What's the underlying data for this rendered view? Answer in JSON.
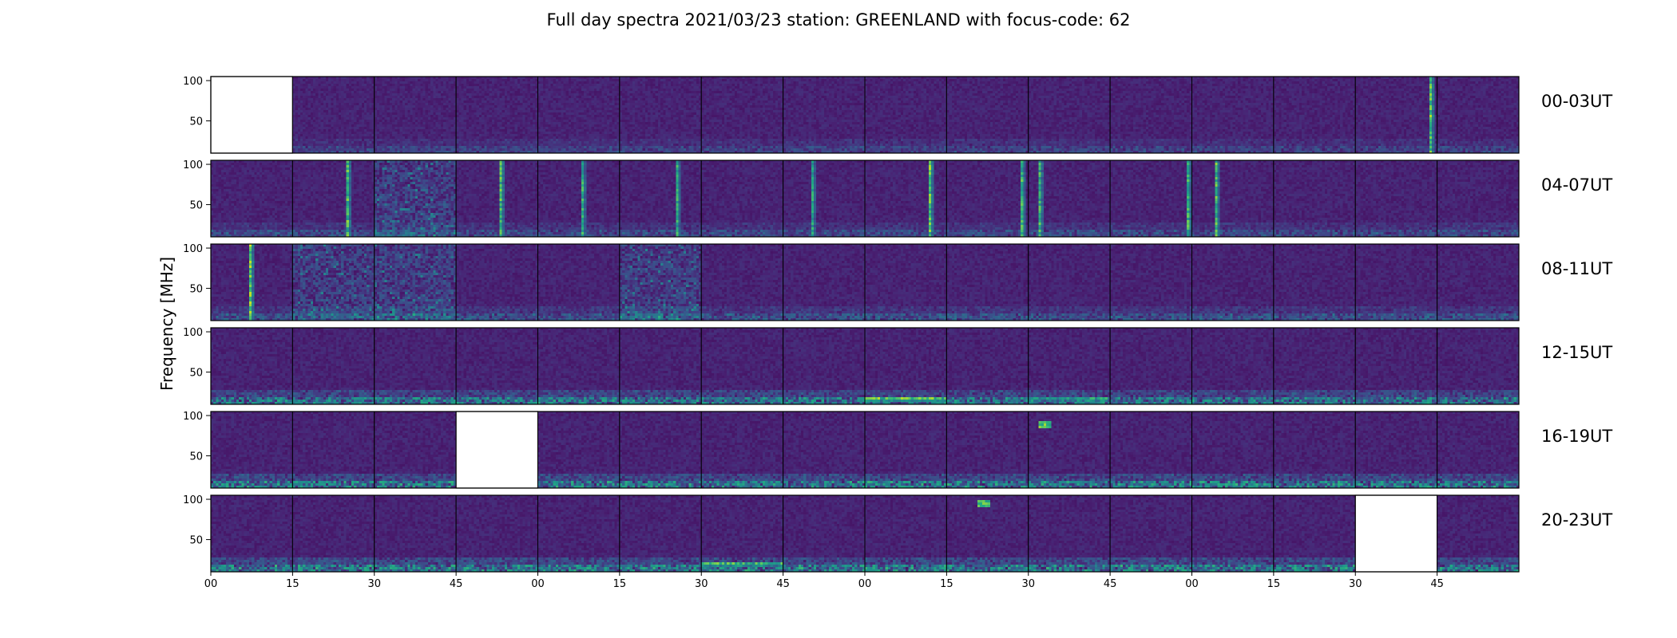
{
  "chart_data": {
    "type": "heatmap",
    "title": "Full day spectra 2021/03/23 station: GREENLAND with focus-code: 62",
    "ylabel": "Frequency [MHz]",
    "ylim": [
      10,
      105
    ],
    "yticks": [
      "100",
      "50"
    ],
    "xticks": [
      "00",
      "15",
      "30",
      "45",
      "00",
      "15",
      "30",
      "45",
      "00",
      "15",
      "30",
      "45",
      "00",
      "15",
      "30",
      "45"
    ],
    "colormap": {
      "low": "#440154",
      "mid": "#21918c",
      "high": "#fde725"
    },
    "panels_per_row": 16,
    "rows": [
      {
        "label": "00-03UT",
        "missing_panels": [
          0
        ],
        "events": [
          {
            "panel": 14,
            "type": "vertical_burst",
            "time_frac": 0.95,
            "strength": 0.9
          }
        ],
        "low_band_activity": 0.2
      },
      {
        "label": "04-07UT",
        "missing_panels": [],
        "events": [
          {
            "panel": 1,
            "type": "vertical_burst",
            "time_frac": 0.68,
            "strength": 0.85
          },
          {
            "panel": 3,
            "type": "vertical_burst",
            "time_frac": 0.55,
            "strength": 0.85
          },
          {
            "panel": 4,
            "type": "vertical_burst",
            "time_frac": 0.55,
            "strength": 0.75
          },
          {
            "panel": 5,
            "type": "vertical_burst",
            "time_frac": 0.72,
            "strength": 0.75
          },
          {
            "panel": 7,
            "type": "vertical_burst",
            "time_frac": 0.35,
            "strength": 0.7
          },
          {
            "panel": 8,
            "type": "vertical_burst",
            "time_frac": 0.8,
            "strength": 0.9
          },
          {
            "panel": 9,
            "type": "vertical_burst",
            "time_frac": 0.93,
            "strength": 0.8
          },
          {
            "panel": 10,
            "type": "vertical_burst",
            "time_frac": 0.12,
            "strength": 0.8
          },
          {
            "panel": 11,
            "type": "vertical_burst",
            "time_frac": 0.97,
            "strength": 0.8
          },
          {
            "panel": 12,
            "type": "vertical_burst",
            "time_frac": 0.3,
            "strength": 0.85
          }
        ],
        "noisy_panels": [
          2
        ],
        "low_band_activity": 0.25
      },
      {
        "label": "08-11UT",
        "missing_panels": [],
        "events": [
          {
            "panel": 0,
            "type": "vertical_burst",
            "time_frac": 0.48,
            "strength": 0.95
          }
        ],
        "noisy_panels": [
          1,
          2,
          5
        ],
        "low_band_activity": 0.3
      },
      {
        "label": "12-15UT",
        "missing_panels": [],
        "events": [
          {
            "panel": 8,
            "type": "horizontal_band",
            "freq": 16,
            "strength": 0.9
          },
          {
            "panel": 10,
            "type": "horizontal_band",
            "freq": 16,
            "strength": 0.7
          }
        ],
        "low_band_activity": 0.55
      },
      {
        "label": "16-19UT",
        "missing_panels": [
          3
        ],
        "events": [
          {
            "panel": 10,
            "type": "spot",
            "time_frac": 0.2,
            "freq": 90,
            "strength": 0.9
          }
        ],
        "low_band_activity": 0.6
      },
      {
        "label": "20-23UT",
        "missing_panels": [
          14
        ],
        "events": [
          {
            "panel": 6,
            "type": "horizontal_band",
            "freq": 18,
            "strength": 0.85
          },
          {
            "panel": 9,
            "type": "spot",
            "time_frac": 0.45,
            "freq": 95,
            "strength": 0.85
          }
        ],
        "low_band_activity": 0.6
      }
    ]
  }
}
